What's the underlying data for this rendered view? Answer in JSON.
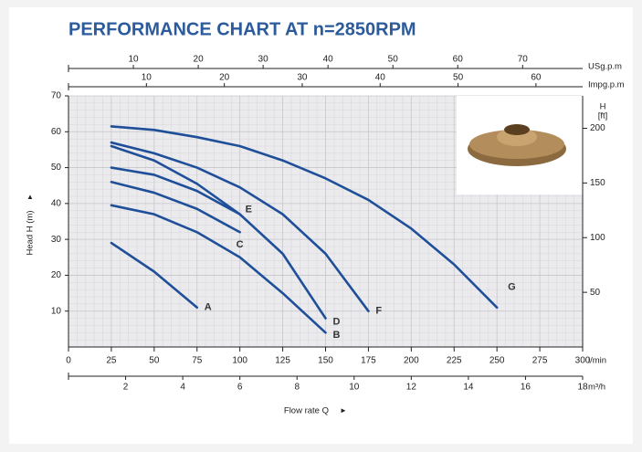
{
  "chart_data": {
    "type": "line",
    "title": "PERFORMANCE CHART AT n=2850RPM",
    "x_label": "Flow rate Q",
    "y_label": "Head H (m)",
    "x_unit": "l/min",
    "xlim": [
      0,
      300
    ],
    "xticks": [
      0,
      25,
      50,
      75,
      100,
      125,
      150,
      175,
      200,
      225,
      250,
      275,
      300
    ],
    "ylim": [
      0,
      70
    ],
    "yticks": [
      10,
      20,
      30,
      40,
      50,
      60,
      70
    ],
    "y2_label": "H",
    "y2_unit": "[ft]",
    "y2lim": [
      0,
      229.66
    ],
    "y2ticks": [
      50,
      100,
      150,
      200
    ],
    "grid": true,
    "extra_x_axes": [
      {
        "unit": "USg.p.m",
        "position": "top",
        "xlim": [
          0,
          79.25
        ],
        "xticks": [
          10,
          20,
          30,
          40,
          50,
          60,
          70
        ]
      },
      {
        "unit": "Impg.p.m",
        "position": "top",
        "xlim": [
          0,
          65.99
        ],
        "xticks": [
          10,
          20,
          30,
          40,
          50,
          60
        ]
      },
      {
        "unit": "m³/h",
        "position": "bottom",
        "xlim": [
          0,
          18
        ],
        "xticks": [
          2,
          4,
          6,
          8,
          10,
          12,
          14,
          16,
          18
        ]
      }
    ],
    "series": [
      {
        "name": "A",
        "color": "#1f4f99",
        "x": [
          25,
          50,
          75
        ],
        "values": [
          29,
          21,
          11
        ]
      },
      {
        "name": "B",
        "color": "#1f4f99",
        "x": [
          25,
          50,
          75,
          100,
          125,
          150
        ],
        "values": [
          39.5,
          37,
          32,
          25,
          15,
          4
        ]
      },
      {
        "name": "C",
        "color": "#1f4f99",
        "x": [
          25,
          50,
          75,
          100
        ],
        "values": [
          46,
          43,
          38.5,
          32
        ]
      },
      {
        "name": "D",
        "color": "#1f4f99",
        "x": [
          25,
          50,
          75,
          100,
          125,
          150
        ],
        "values": [
          50,
          48,
          43.5,
          37,
          26,
          8
        ]
      },
      {
        "name": "E",
        "color": "#1f4f99",
        "x": [
          25,
          50,
          75,
          100
        ],
        "values": [
          56,
          52,
          45.5,
          37
        ]
      },
      {
        "name": "F",
        "color": "#1f4f99",
        "x": [
          25,
          50,
          75,
          100,
          125,
          150,
          175
        ],
        "values": [
          57,
          54,
          50,
          44.5,
          37,
          26,
          10
        ]
      },
      {
        "name": "G",
        "color": "#1f4f99",
        "x": [
          25,
          50,
          75,
          100,
          125,
          150,
          175,
          200,
          225,
          250
        ],
        "values": [
          61.5,
          60.5,
          58.5,
          56,
          52,
          47,
          41,
          33,
          23,
          11
        ]
      }
    ]
  }
}
